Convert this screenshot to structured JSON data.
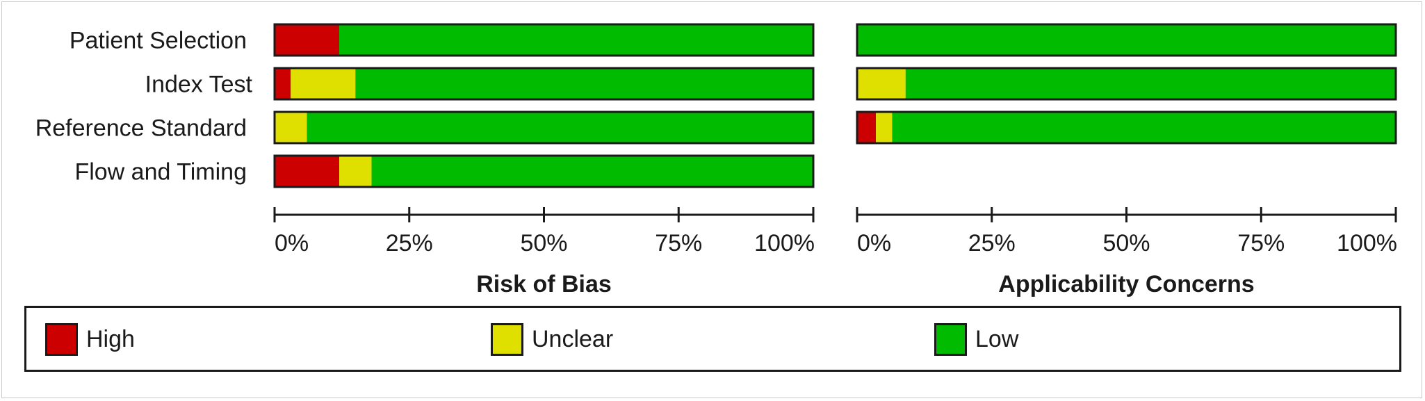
{
  "colors": {
    "high": "#cc0000",
    "unclear": "#e0e000",
    "low": "#00bb00"
  },
  "legend": [
    {
      "key": "high",
      "label": "High"
    },
    {
      "key": "unclear",
      "label": "Unclear"
    },
    {
      "key": "low",
      "label": "Low"
    }
  ],
  "chart_data": [
    {
      "type": "bar",
      "title": "Risk of Bias",
      "categories": [
        "Patient Selection",
        "Index Test",
        "Reference Standard",
        "Flow and Timing"
      ],
      "series": [
        {
          "name": "High",
          "values": [
            12,
            3,
            0,
            12
          ]
        },
        {
          "name": "Unclear",
          "values": [
            0,
            12,
            6,
            6
          ]
        },
        {
          "name": "Low",
          "values": [
            88,
            85,
            94,
            82
          ]
        }
      ],
      "xlim": [
        0,
        100
      ],
      "x_ticks": [
        "0%",
        "25%",
        "50%",
        "75%",
        "100%"
      ],
      "stacked": true,
      "orientation": "horizontal"
    },
    {
      "type": "bar",
      "title": "Applicability Concerns",
      "categories": [
        "Patient Selection",
        "Index Test",
        "Reference Standard"
      ],
      "series": [
        {
          "name": "High",
          "values": [
            0,
            0,
            3.5
          ]
        },
        {
          "name": "Unclear",
          "values": [
            0,
            9,
            3
          ]
        },
        {
          "name": "Low",
          "values": [
            100,
            91,
            93.5
          ]
        }
      ],
      "xlim": [
        0,
        100
      ],
      "x_ticks": [
        "0%",
        "25%",
        "50%",
        "75%",
        "100%"
      ],
      "stacked": true,
      "orientation": "horizontal"
    }
  ]
}
